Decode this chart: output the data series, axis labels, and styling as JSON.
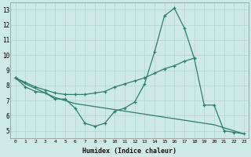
{
  "xlabel": "Humidex (Indice chaleur)",
  "line_color": "#2e7d6e",
  "background_color": "#ceeae7",
  "grid_color": "#b8d8d4",
  "line1_x": [
    0,
    1,
    2,
    3,
    4,
    5,
    6,
    7,
    8,
    9,
    10,
    11,
    12,
    13,
    14,
    15,
    16,
    17,
    18
  ],
  "line1_y": [
    8.5,
    7.9,
    7.6,
    7.5,
    7.1,
    7.1,
    6.5,
    5.5,
    5.3,
    5.5,
    6.3,
    6.5,
    6.9,
    8.1,
    10.2,
    12.6,
    13.1,
    11.8,
    9.8
  ],
  "line2_x": [
    0,
    1,
    2,
    3,
    4,
    5,
    6,
    7,
    8,
    9,
    10,
    11,
    12,
    13,
    14,
    15,
    16,
    17,
    18,
    19,
    20,
    21,
    22,
    23
  ],
  "line2_y": [
    8.5,
    8.2,
    7.9,
    7.7,
    7.5,
    7.4,
    7.4,
    7.4,
    7.5,
    7.6,
    7.9,
    8.1,
    8.3,
    8.5,
    8.8,
    9.1,
    9.3,
    9.6,
    9.8,
    6.7,
    6.7,
    5.0,
    4.9,
    4.8
  ],
  "line3_x": [
    0,
    1,
    2,
    3,
    4,
    5,
    6,
    7,
    8,
    9,
    10,
    11,
    12,
    13,
    14,
    15,
    16,
    17,
    18,
    19,
    20,
    21,
    22,
    23
  ],
  "line3_y": [
    8.5,
    8.1,
    7.8,
    7.5,
    7.2,
    7.0,
    6.8,
    6.7,
    6.6,
    6.5,
    6.4,
    6.3,
    6.2,
    6.1,
    6.0,
    5.9,
    5.8,
    5.7,
    5.6,
    5.5,
    5.4,
    5.2,
    5.0,
    4.8
  ],
  "xlim": [
    -0.5,
    23.5
  ],
  "ylim": [
    4.5,
    13.5
  ],
  "yticks": [
    5,
    6,
    7,
    8,
    9,
    10,
    11,
    12,
    13
  ],
  "xticks": [
    0,
    1,
    2,
    3,
    4,
    5,
    6,
    7,
    8,
    9,
    10,
    11,
    12,
    13,
    14,
    15,
    16,
    17,
    18,
    19,
    20,
    21,
    22,
    23
  ]
}
